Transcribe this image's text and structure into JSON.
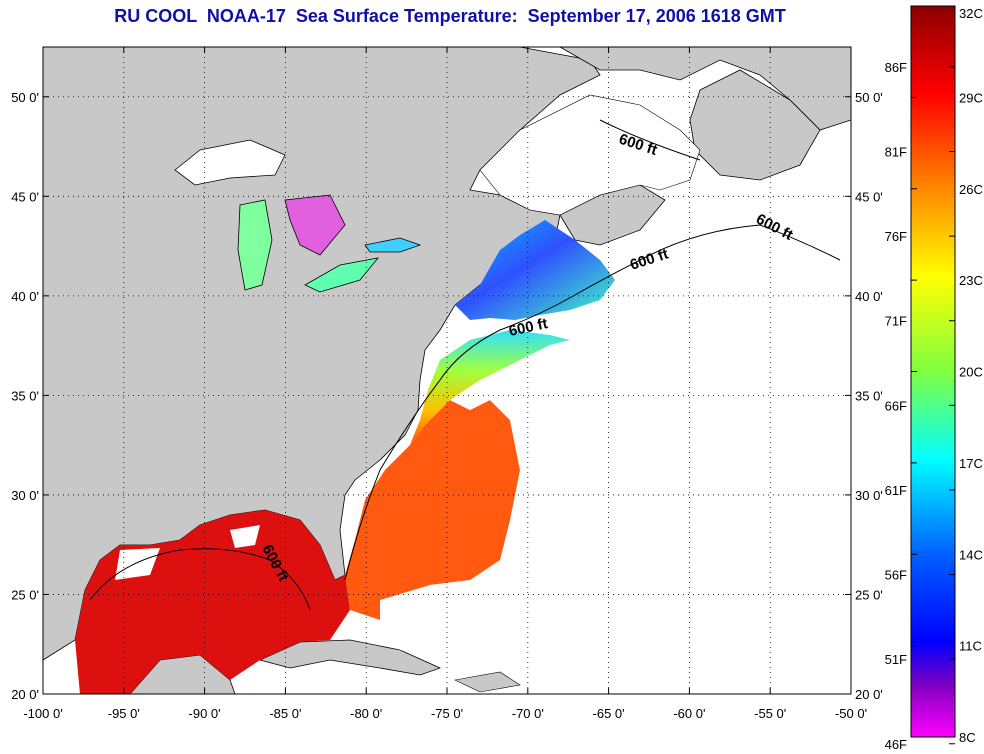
{
  "title": "RU COOL  NOAA-17  Sea Surface Temperature:  September 17, 2006 1618 GMT",
  "map": {
    "lon_range": [
      -100,
      -50
    ],
    "lat_range": [
      20,
      52.5
    ],
    "lon_ticks": [
      "-100 0'",
      "-95 0'",
      "-90 0'",
      "-85 0'",
      "-80 0'",
      "-75 0'",
      "-70 0'",
      "-65 0'",
      "-60 0'",
      "-55 0'",
      "-50 0'"
    ],
    "lat_ticks": [
      "20 0'",
      "25 0'",
      "30 0'",
      "35 0'",
      "40 0'",
      "45 0'",
      "50 0'"
    ],
    "isobath_labels": [
      "600 ft",
      "600 ft",
      "600 ft",
      "600 ft",
      "600 ft"
    ],
    "land_color": "#c8c8c8",
    "cloud_color": "#ffffff"
  },
  "colorbar": {
    "celsius": [
      "32C",
      "29C",
      "26C",
      "23C",
      "20C",
      "17C",
      "14C",
      "11C",
      "8C"
    ],
    "fahrenheit": [
      "86F",
      "81F",
      "76F",
      "71F",
      "66F",
      "61F",
      "56F",
      "51F",
      "46F"
    ],
    "range_c": [
      8,
      32
    ],
    "colors_top_to_bottom": [
      "#8b0000",
      "#ff0000",
      "#ff8800",
      "#ffff00",
      "#80ff40",
      "#00ffff",
      "#0060ff",
      "#0000ff",
      "#8000c0",
      "#ff00ff"
    ]
  }
}
